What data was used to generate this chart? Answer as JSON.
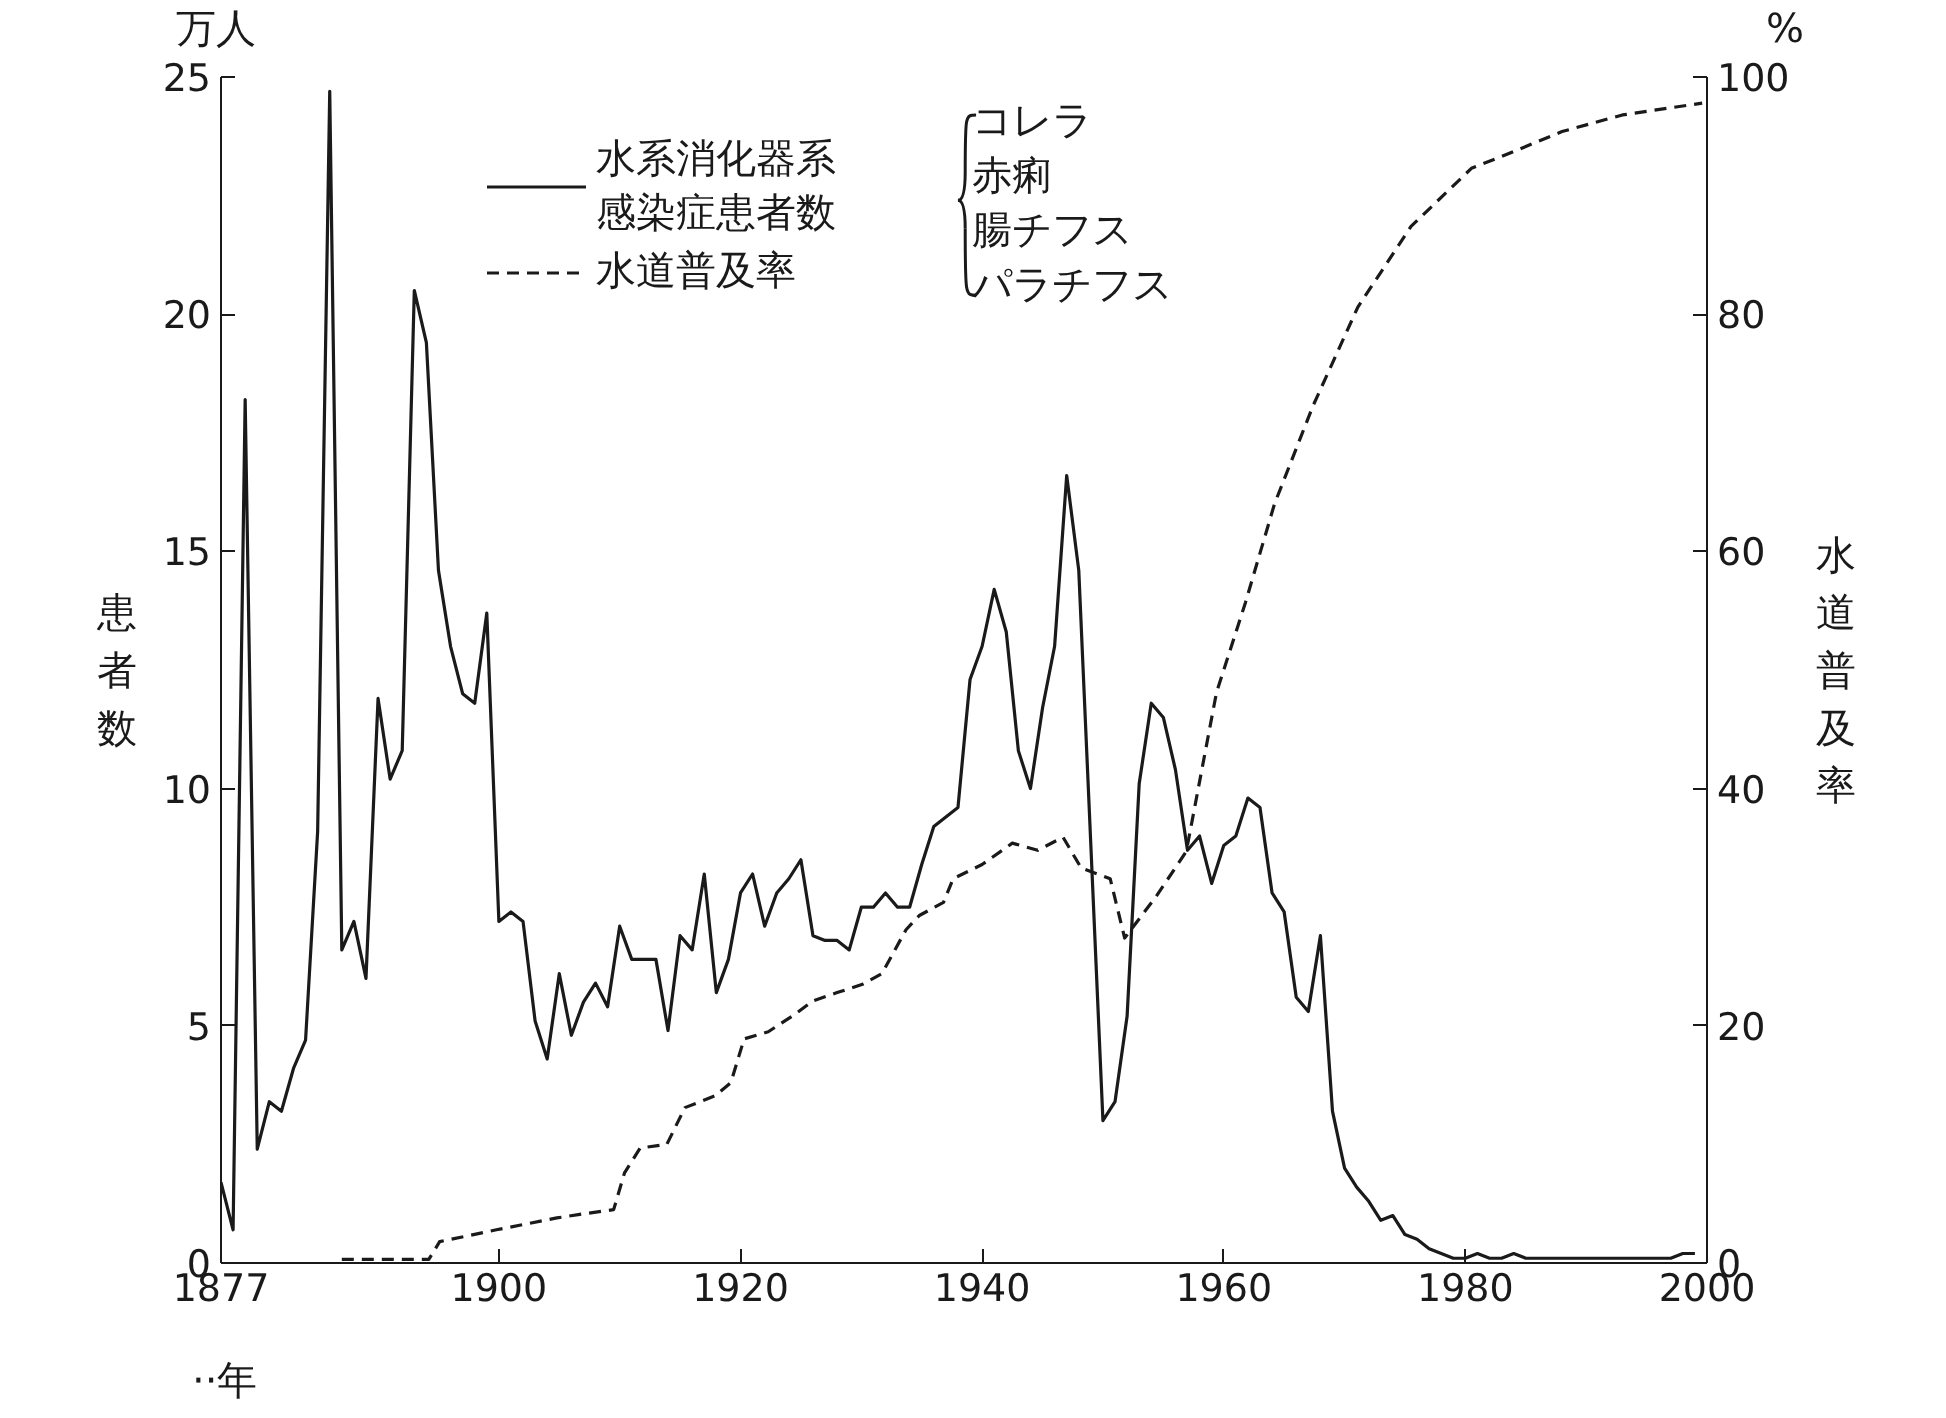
{
  "chart_data": {
    "type": "line",
    "xlabel": "··年",
    "ylabel": "患者数",
    "y2label": "水道普及率",
    "annotations": [
      "万人",
      "%",
      "コレラ",
      "赤痢",
      "腸チフス",
      "パラチフス"
    ],
    "xlim": [
      1877,
      2000
    ],
    "xticks": [
      1877,
      1900,
      1920,
      1940,
      1960,
      1980,
      2000
    ],
    "ylim": [
      0,
      25
    ],
    "yticks": [
      0,
      5,
      10,
      15,
      20,
      25
    ],
    "y2lim": [
      0,
      100
    ],
    "y2ticks": [
      0,
      20,
      40,
      60,
      80,
      100
    ],
    "grid": false,
    "legend": "top",
    "marker": "none",
    "series": [
      {
        "name": "水系消化器系感染症患者数",
        "color": "#1a1a1a",
        "line_style": "solid",
        "x": [
          1877,
          1878,
          1879,
          1880,
          1881,
          1882,
          1883,
          1884,
          1885,
          1886,
          1887,
          1888,
          1889,
          1890,
          1891,
          1892,
          1893,
          1894,
          1895,
          1896,
          1897,
          1898,
          1899,
          1900,
          1901,
          1902,
          1903,
          1904,
          1905,
          1906,
          1907,
          1908,
          1909,
          1910,
          1911,
          1912,
          1913,
          1914,
          1915,
          1916,
          1917,
          1918,
          1919,
          1920,
          1921,
          1922,
          1923,
          1924,
          1925,
          1926,
          1927,
          1928,
          1929,
          1930,
          1931,
          1932,
          1933,
          1934,
          1935,
          1936,
          1937,
          1938,
          1939,
          1940,
          1941,
          1942,
          1943,
          1944,
          1945,
          1946,
          1947,
          1948,
          1949,
          1950,
          1951,
          1952,
          1953,
          1954,
          1955,
          1956,
          1957,
          1958,
          1959,
          1960,
          1961,
          1962,
          1963,
          1964,
          1965,
          1966,
          1967,
          1968,
          1969,
          1970,
          1971,
          1972,
          1973,
          1974,
          1975,
          1976,
          1977,
          1978,
          1979,
          1980,
          1981,
          1982,
          1983,
          1984,
          1985,
          1986,
          1987,
          1988,
          1989,
          1990,
          1991,
          1992,
          1993,
          1994,
          1995,
          1996,
          1997,
          1998,
          1999
        ],
        "values": [
          1.7,
          0.7,
          18.2,
          2.4,
          3.4,
          3.2,
          4.1,
          4.7,
          9.1,
          24.7,
          6.6,
          7.2,
          6.0,
          11.9,
          10.2,
          10.8,
          20.5,
          19.4,
          14.6,
          13.0,
          12.0,
          11.8,
          13.7,
          7.2,
          7.4,
          7.2,
          5.1,
          4.3,
          6.1,
          4.8,
          5.5,
          5.9,
          5.4,
          7.1,
          6.4,
          6.4,
          6.4,
          4.9,
          6.9,
          6.6,
          8.2,
          5.7,
          6.4,
          7.8,
          8.2,
          7.1,
          7.8,
          8.1,
          8.5,
          6.9,
          6.8,
          6.8,
          6.6,
          7.5,
          7.5,
          7.8,
          7.5,
          7.5,
          8.4,
          9.2,
          9.4,
          9.6,
          12.3,
          13.0,
          14.2,
          13.3,
          10.8,
          10.0,
          11.7,
          13.0,
          16.6,
          14.6,
          8.8,
          3.0,
          3.4,
          5.2,
          10.1,
          11.8,
          11.5,
          10.4,
          8.7,
          9.0,
          8.0,
          8.8,
          9.0,
          9.8,
          9.6,
          7.8,
          7.4,
          5.6,
          5.3,
          6.9,
          3.2,
          2.0,
          1.6,
          1.3,
          0.9,
          1.0,
          0.6,
          0.5,
          0.3,
          0.2,
          0.1,
          0.1,
          0.2,
          0.1,
          0.1,
          0.2,
          0.1,
          0.1,
          0.1,
          0.1,
          0.1,
          0.1,
          0.1,
          0.1,
          0.1,
          0.1,
          0.1,
          0.1,
          0.1,
          0.2,
          0.2
        ]
      },
      {
        "name": "水道普及率",
        "color": "#1a1a1a",
        "line_style": "dashed",
        "axis": "y2",
        "x": [
          1887,
          1894.2,
          1895.1,
          1899.8,
          1904.8,
          1906.7,
          1909.5,
          1910.4,
          1911.7,
          1913.9,
          1915.4,
          1917.9,
          1919.2,
          1920.3,
          1922.3,
          1924.4,
          1926,
          1928,
          1930.1,
          1931.7,
          1933.7,
          1934.8,
          1936.8,
          1937.6,
          1940,
          1942.5,
          1944.6,
          1946.7,
          1948.2,
          1950.6,
          1951.8,
          1954.4,
          1956.9,
          1959.4,
          1961.8,
          1964.2,
          1967.4,
          1971.1,
          1975.5,
          1980.5,
          1983,
          1988,
          1993,
          1999.6
        ],
        "values": [
          0.3,
          0.3,
          1.8,
          2.8,
          3.8,
          4.1,
          4.5,
          7.6,
          9.7,
          10.0,
          13.1,
          14.1,
          15.2,
          18.9,
          19.5,
          20.9,
          22.1,
          22.8,
          23.5,
          24.4,
          28.1,
          29.3,
          30.4,
          32.4,
          33.6,
          35.4,
          34.8,
          35.9,
          33.3,
          32.4,
          27.4,
          30.9,
          34.7,
          48.1,
          55.7,
          64.0,
          72.3,
          80.6,
          87.4,
          92.3,
          93.3,
          95.4,
          96.8,
          97.8
        ]
      }
    ]
  }
}
